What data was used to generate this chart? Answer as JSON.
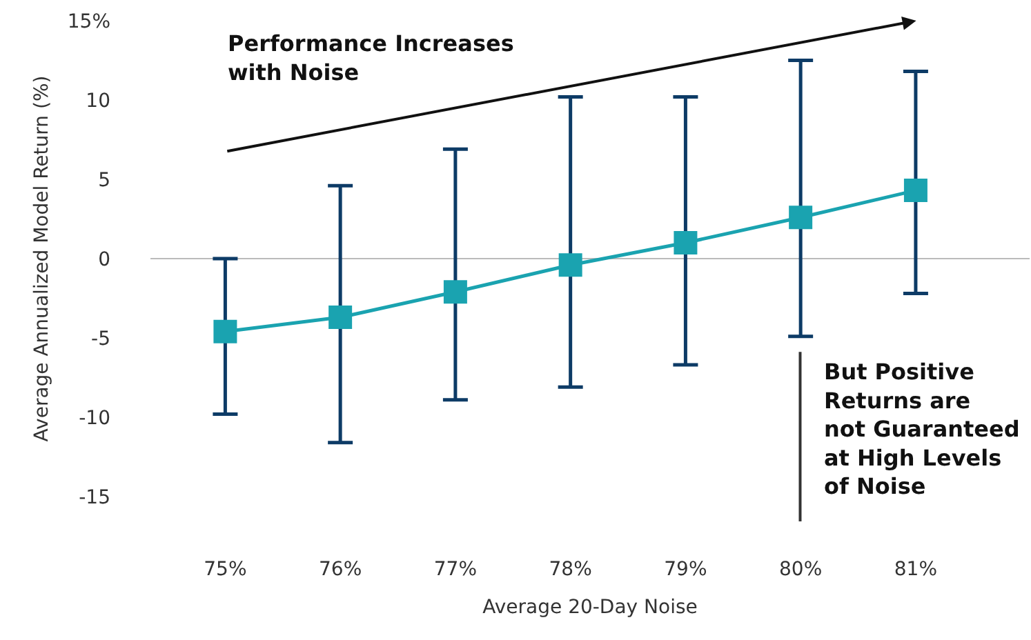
{
  "chart_data": {
    "type": "line",
    "xlabel": "Average 20-Day Noise",
    "ylabel": "Average Annualized Model Return (%)",
    "categories": [
      "75%",
      "76%",
      "77%",
      "78%",
      "79%",
      "80%",
      "81%"
    ],
    "series": [
      {
        "color": "#1aa3b0",
        "values": [
          -4.6,
          -3.7,
          -2.1,
          -0.4,
          1.0,
          2.6,
          4.3
        ],
        "errors": [
          [
            -9.8,
            0
          ],
          [
            -11.6,
            4.6
          ],
          [
            -8.9,
            6.9
          ],
          [
            -8.1,
            10.2
          ],
          [
            -6.7,
            10.2
          ],
          [
            -4.9,
            12.5
          ],
          [
            -2.2,
            11.8
          ]
        ]
      }
    ],
    "marker": "square",
    "line_style": "solid",
    "grid": false,
    "ylim": [
      -15,
      15
    ],
    "yticks": [
      {
        "value": 15,
        "label": "15%"
      },
      10,
      5,
      0,
      -5,
      -10,
      -15
    ],
    "ref_lines": [
      {
        "axis": "y",
        "value": 0,
        "color": "#bbbbbb"
      }
    ],
    "annotations": [
      "Performance Increases\nwith Noise",
      "But Positive\nReturns are\nnot Guaranteed\nat High Levels\nof Noise"
    ]
  }
}
